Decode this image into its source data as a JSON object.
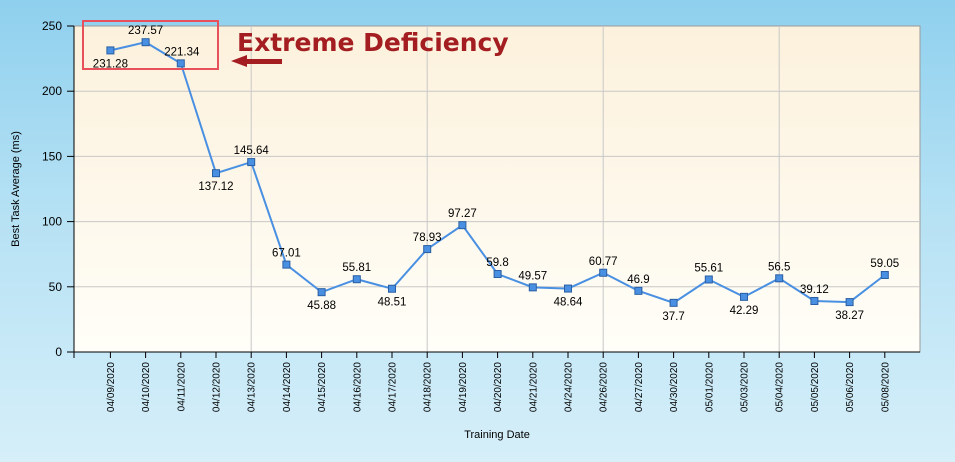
{
  "chart_data": {
    "type": "line",
    "xlabel": "Training Date",
    "ylabel": "Best Task Average (ms)",
    "ylim": [
      0,
      250
    ],
    "yticks": [
      "0",
      "50",
      "100",
      "150",
      "200",
      "250"
    ],
    "grid": true,
    "categories": [
      "04/09/2020",
      "04/10/2020",
      "04/11/2020",
      "04/12/2020",
      "04/13/2020",
      "04/14/2020",
      "04/15/2020",
      "04/16/2020",
      "04/17/2020",
      "04/18/2020",
      "04/19/2020",
      "04/20/2020",
      "04/21/2020",
      "04/24/2020",
      "04/26/2020",
      "04/27/2020",
      "04/30/2020",
      "05/01/2020",
      "05/03/2020",
      "05/04/2020",
      "05/05/2020",
      "05/06/2020",
      "05/08/2020"
    ],
    "series": [
      {
        "values": [
          231.28,
          237.57,
          221.34,
          137.12,
          145.64,
          67.01,
          45.88,
          55.81,
          48.51,
          78.93,
          97.27,
          59.8,
          49.57,
          48.64,
          60.77,
          46.9,
          37.7,
          55.61,
          42.29,
          56.5,
          39.12,
          38.27,
          59.05
        ],
        "labels": [
          "231.28",
          "237.57",
          "221.34",
          "137.12",
          "145.64",
          "67.01",
          "45.88",
          "55.81",
          "48.51",
          "78.93",
          "97.27",
          "59.8",
          "49.57",
          "48.64",
          "60.77",
          "46.9",
          "37.7",
          "55.61",
          "42.29",
          "56.5",
          "39.12",
          "38.27",
          "59.05"
        ],
        "color": "#4a90e2"
      }
    ],
    "annotation": {
      "text": "Extreme Deficiency",
      "color": "#a31d21",
      "box_color": "#e8505b"
    }
  }
}
